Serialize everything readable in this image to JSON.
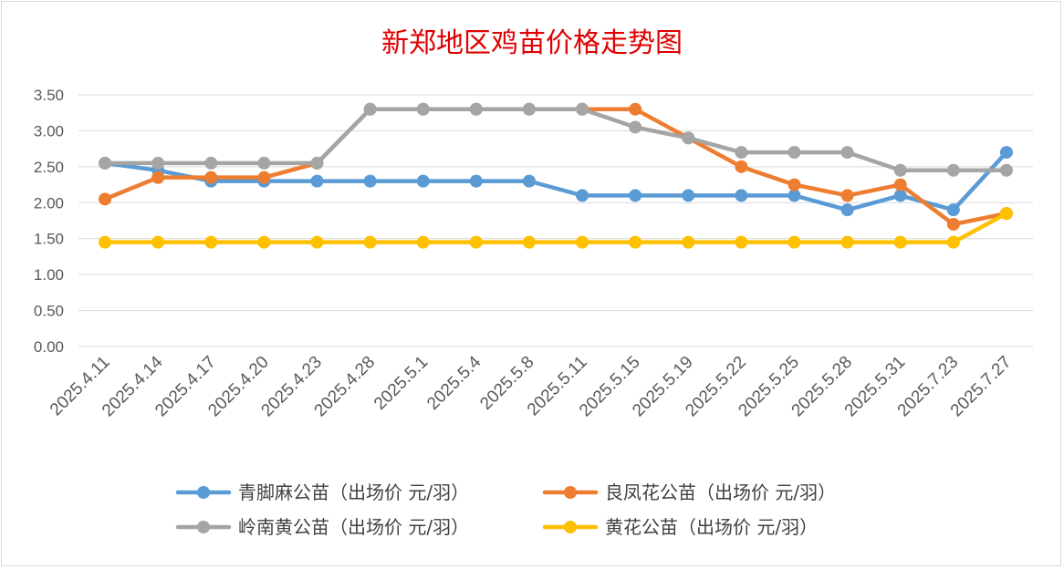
{
  "chart_data": {
    "type": "line",
    "title": "新郑地区鸡苗价格走势图",
    "xlabel": "",
    "ylabel": "",
    "categories": [
      "2025.4.11",
      "2025.4.14",
      "2025.4.17",
      "2025.4.20",
      "2025.4.23",
      "2025.4.28",
      "2025.5.1",
      "2025.5.4",
      "2025.5.8",
      "2025.5.11",
      "2025.5.15",
      "2025.5.19",
      "2025.5.22",
      "2025.5.25",
      "2025.5.28",
      "2025.5.31",
      "2025.7.23",
      "2025.7.27"
    ],
    "yticks": [
      "0.00",
      "0.50",
      "1.00",
      "1.50",
      "2.00",
      "2.50",
      "3.00",
      "3.50"
    ],
    "ylim": [
      0,
      3.5
    ],
    "grid": true,
    "legend_position": "bottom",
    "series": [
      {
        "name": "青脚麻公苗（出场价 元/羽）",
        "color": "#5b9bd5",
        "values": [
          2.55,
          2.45,
          2.3,
          2.3,
          2.3,
          2.3,
          2.3,
          2.3,
          2.3,
          2.1,
          2.1,
          2.1,
          2.1,
          2.1,
          1.9,
          2.1,
          1.9,
          2.7
        ]
      },
      {
        "name": "良凤花公苗（出场价 元/羽）",
        "color": "#ed7d31",
        "values": [
          2.05,
          2.35,
          2.35,
          2.35,
          2.55,
          3.3,
          3.3,
          3.3,
          3.3,
          3.3,
          3.3,
          2.9,
          2.5,
          2.25,
          2.1,
          2.25,
          1.7,
          1.85
        ]
      },
      {
        "name": "岭南黄公苗（出场价 元/羽）",
        "color": "#a5a5a5",
        "values": [
          2.55,
          2.55,
          2.55,
          2.55,
          2.55,
          3.3,
          3.3,
          3.3,
          3.3,
          3.3,
          3.05,
          2.9,
          2.7,
          2.7,
          2.7,
          2.45,
          2.45,
          2.45
        ]
      },
      {
        "name": "黄花公苗（出场价 元/羽）",
        "color": "#ffc000",
        "values": [
          1.45,
          1.45,
          1.45,
          1.45,
          1.45,
          1.45,
          1.45,
          1.45,
          1.45,
          1.45,
          1.45,
          1.45,
          1.45,
          1.45,
          1.45,
          1.45,
          1.45,
          1.85
        ]
      }
    ]
  }
}
